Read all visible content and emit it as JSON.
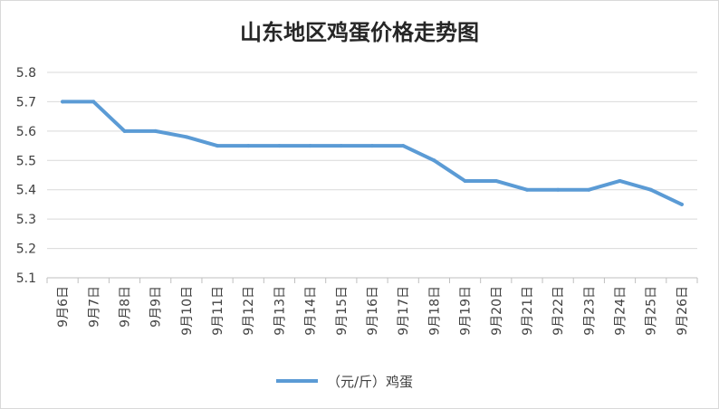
{
  "chart_data": {
    "type": "line",
    "title": "山东地区鸡蛋价格走势图",
    "categories": [
      "9月6日",
      "9月7日",
      "9月8日",
      "9月9日",
      "9月10日",
      "9月11日",
      "9月12日",
      "9月13日",
      "9月14日",
      "9月15日",
      "9月16日",
      "9月17日",
      "9月18日",
      "9月19日",
      "9月20日",
      "9月21日",
      "9月22日",
      "9月23日",
      "9月24日",
      "9月25日",
      "9月26日"
    ],
    "series": [
      {
        "name": "（元/斤）鸡蛋",
        "color": "#5b9bd5",
        "values": [
          5.7,
          5.7,
          5.6,
          5.6,
          5.58,
          5.55,
          5.55,
          5.55,
          5.55,
          5.55,
          5.55,
          5.55,
          5.5,
          5.43,
          5.43,
          5.4,
          5.4,
          5.4,
          5.43,
          5.4,
          5.35
        ]
      }
    ],
    "y_ticks": [
      "5.1",
      "5.2",
      "5.3",
      "5.4",
      "5.5",
      "5.6",
      "5.7",
      "5.8"
    ],
    "ylim": [
      5.1,
      5.8
    ],
    "grid": true,
    "legend_position": "bottom",
    "xlabel": "",
    "ylabel": ""
  }
}
